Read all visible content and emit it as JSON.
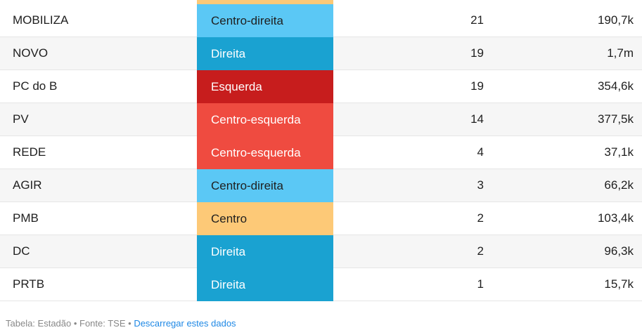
{
  "colors": {
    "direita": "#1aa2d1",
    "centro_direita": "#5bc8f5",
    "centro": "#fdc977",
    "centro_esquerda": "#ef4b40",
    "esquerda": "#c71d1d"
  },
  "rows": [
    {
      "party": "MOBILIZA",
      "ideology": "Centro-direita",
      "deputies": "21",
      "votes": "190,7k",
      "color": "#5bc8f5",
      "text_color": "#1f1f1f"
    },
    {
      "party": "NOVO",
      "ideology": "Direita",
      "deputies": "19",
      "votes": "1,7m",
      "color": "#1aa2d1",
      "text_color": "#ffffff"
    },
    {
      "party": "PC do B",
      "ideology": "Esquerda",
      "deputies": "19",
      "votes": "354,6k",
      "color": "#c71d1d",
      "text_color": "#ffffff"
    },
    {
      "party": "PV",
      "ideology": "Centro-esquerda",
      "deputies": "14",
      "votes": "377,5k",
      "color": "#ef4b40",
      "text_color": "#ffffff"
    },
    {
      "party": "REDE",
      "ideology": "Centro-esquerda",
      "deputies": "4",
      "votes": "37,1k",
      "color": "#ef4b40",
      "text_color": "#ffffff"
    },
    {
      "party": "AGIR",
      "ideology": "Centro-direita",
      "deputies": "3",
      "votes": "66,2k",
      "color": "#5bc8f5",
      "text_color": "#1f1f1f"
    },
    {
      "party": "PMB",
      "ideology": "Centro",
      "deputies": "2",
      "votes": "103,4k",
      "color": "#fdc977",
      "text_color": "#1f1f1f"
    },
    {
      "party": "DC",
      "ideology": "Direita",
      "deputies": "2",
      "votes": "96,3k",
      "color": "#1aa2d1",
      "text_color": "#ffffff"
    },
    {
      "party": "PRTB",
      "ideology": "Direita",
      "deputies": "1",
      "votes": "15,7k",
      "color": "#1aa2d1",
      "text_color": "#ffffff"
    }
  ],
  "top_strip_color": "#fdc977",
  "footer": {
    "source_text": "Tabela: Estadão • Fonte: TSE • ",
    "download_link": "Descarregar estes dados"
  }
}
